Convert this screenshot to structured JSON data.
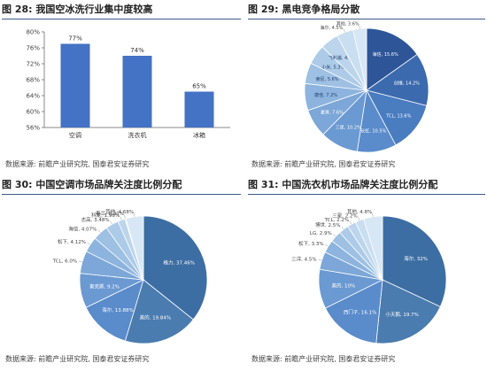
{
  "panels": [
    {
      "title": "图 28: 我国空冰洗行业集中度较高",
      "source": "数据来源: 前瞻产业研究院, 国泰君安证券研究"
    },
    {
      "title": "图 29: 黑电竞争格局分散",
      "source": "数据来源: 前瞻产业研究院, 国泰君安证券研究"
    },
    {
      "title": "图 30: 中国空调市场品牌关注度比例分配",
      "source": "数据来源: 前瞻产业研究院, 国泰君安证券研究"
    },
    {
      "title": "图 31: 中国洗衣机市场品牌关注度比例分配",
      "source": "数据来源: 前瞻产业研究院, 国泰君安证券研究"
    }
  ],
  "colors": {
    "bar": "#4472c4",
    "blues": [
      "#2e5597",
      "#3c6aaf",
      "#4a7cc0",
      "#5a8bcb",
      "#6b99d2",
      "#7ca7d8",
      "#8db4de",
      "#9dc0e3",
      "#adcbe8",
      "#bcd5ec",
      "#cadef1",
      "#d7e7f5"
    ],
    "big_slices": [
      "#3d6ea3",
      "#4a7cb0"
    ]
  },
  "chart_data": [
    {
      "type": "bar",
      "categories": [
        "空调",
        "洗衣机",
        "冰箱"
      ],
      "values": [
        77,
        74,
        65
      ],
      "value_labels": [
        "77%",
        "74%",
        "65%"
      ],
      "ylim": [
        56,
        80
      ],
      "yticks": [
        "56%",
        "60%",
        "64%",
        "68%",
        "72%",
        "76%",
        "80%"
      ],
      "grid": false
    },
    {
      "type": "pie",
      "labels": [
        "海信, 15.6%",
        "创维, 14.2%",
        "TCL, 13.6%",
        "长虹, 10.5%",
        "三星, 10.2%",
        "夏普, 7.6%",
        "康佳, 7.2%",
        "索尼, 5.6%",
        "小米, 5.3%",
        "飞利浦, 4.9%",
        "海尔, 4.5%",
        "其他, 3.6%"
      ],
      "values": [
        15.6,
        14.2,
        13.6,
        10.5,
        10.2,
        7.6,
        7.2,
        5.6,
        5.3,
        4.9,
        4.5,
        3.6
      ]
    },
    {
      "type": "pie",
      "labels": [
        "格力, 37.46%",
        "美的, 19.84%",
        "海尔, 13.88%",
        "奥克斯, 9.2%",
        "TCL, 6.0%",
        "松下, 4.12%",
        "海信, 4.07%",
        "志高, 3.48%",
        "科龙, 1.96%",
        "春兰, 0.21%",
        "其他, 4.68%"
      ],
      "values": [
        37.46,
        19.84,
        13.88,
        9.2,
        6.0,
        4.12,
        4.07,
        3.48,
        1.96,
        0.21,
        4.68
      ]
    },
    {
      "type": "pie",
      "labels": [
        "海尔, 32%",
        "小天鹅, 19.7%",
        "西门子, 16.1%",
        "美的, 10%",
        "三洋, 4.5%",
        "松下, 3.3%",
        "LG, 2.9%",
        "博世, 2.5%",
        "TCL, 2.2%",
        "三星, 2.2%",
        "其他, 4.8%"
      ],
      "values": [
        32,
        19.7,
        16.1,
        10,
        4.5,
        3.3,
        2.9,
        2.5,
        2.2,
        2.2,
        4.8
      ]
    }
  ]
}
